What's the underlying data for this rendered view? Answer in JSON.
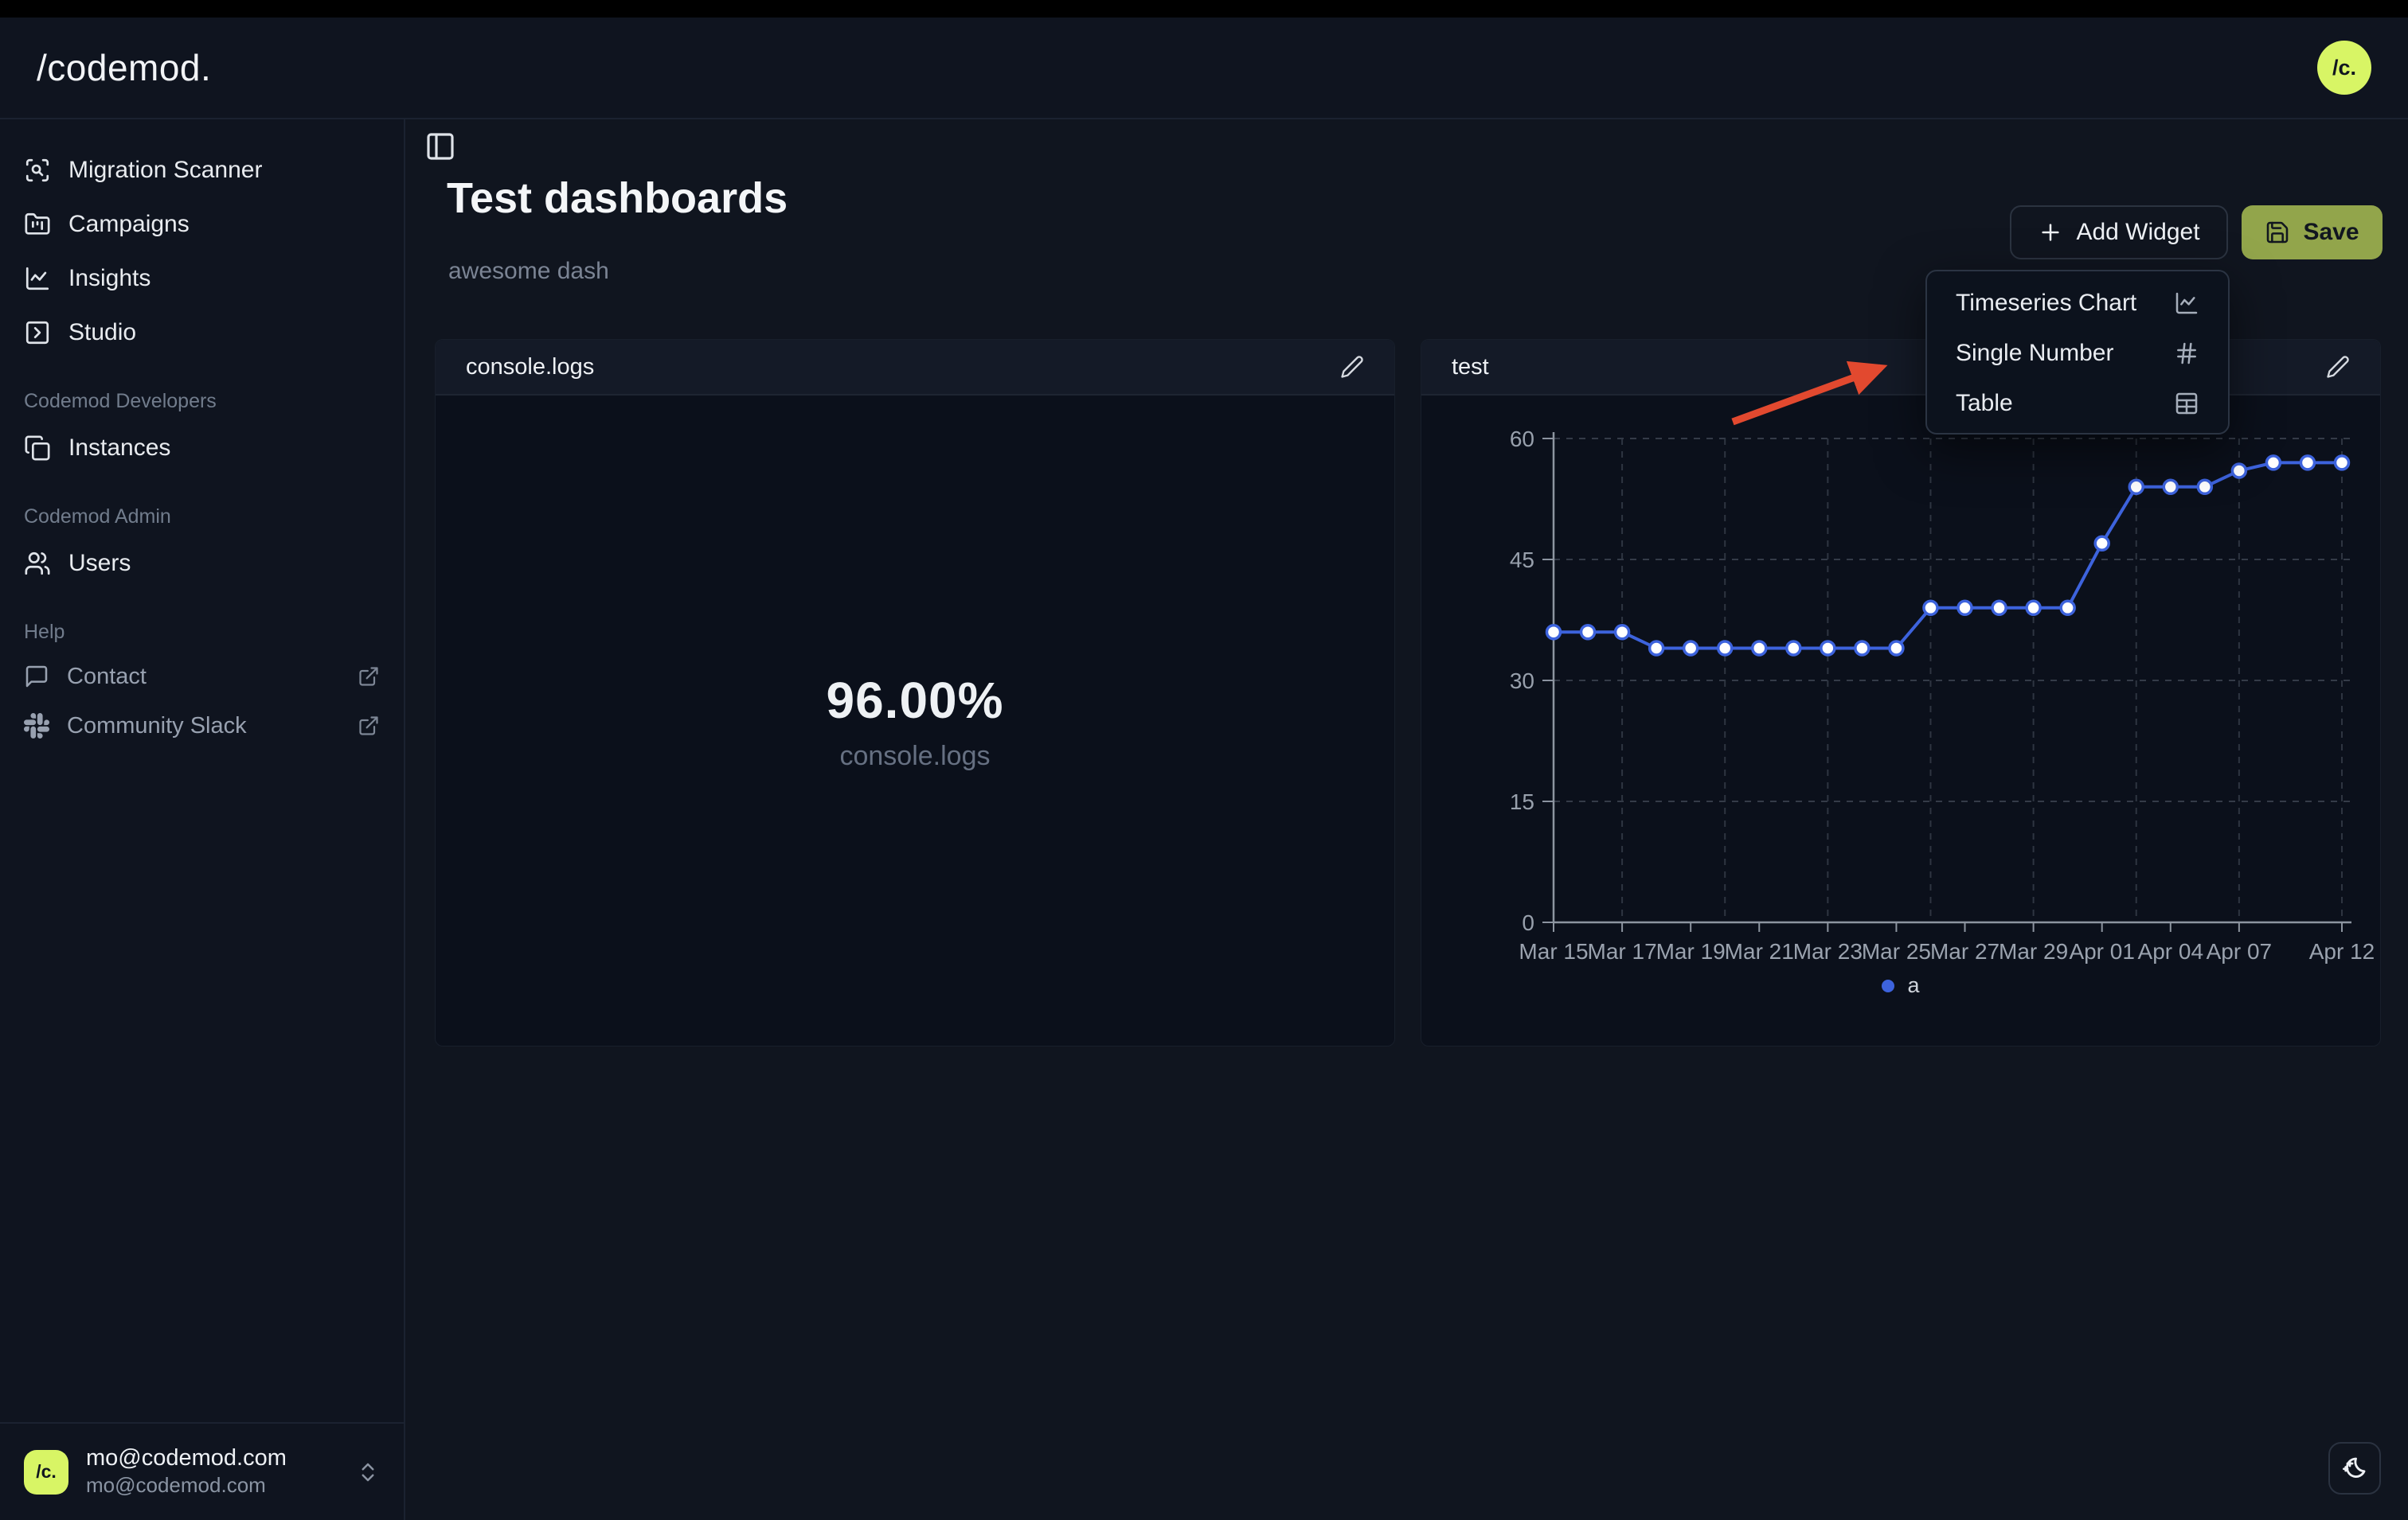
{
  "topbar": {
    "logo": "/codemod.",
    "avatar_initials": "/c."
  },
  "sidebar": {
    "nav": [
      {
        "label": "Migration Scanner"
      },
      {
        "label": "Campaigns"
      },
      {
        "label": "Insights"
      },
      {
        "label": "Studio"
      }
    ],
    "sections": [
      {
        "title": "Codemod Developers",
        "items": [
          {
            "label": "Instances"
          }
        ]
      },
      {
        "title": "Codemod Admin",
        "items": [
          {
            "label": "Users"
          }
        ]
      },
      {
        "title": "Help",
        "items": [
          {
            "label": "Contact",
            "external": true
          },
          {
            "label": "Community Slack",
            "external": true
          }
        ]
      }
    ],
    "user": {
      "name": "mo@codemod.com",
      "email": "mo@codemod.com",
      "avatar_initials": "/c."
    }
  },
  "header": {
    "title": "Test dashboards",
    "subtitle": "awesome dash",
    "add_widget_label": "Add Widget",
    "save_label": "Save"
  },
  "add_widget_menu": {
    "items": [
      {
        "label": "Timeseries Chart",
        "icon": "chart-line-icon"
      },
      {
        "label": "Single Number",
        "icon": "hash-icon"
      },
      {
        "label": "Table",
        "icon": "table-icon"
      }
    ]
  },
  "widgets": [
    {
      "title": "console.logs",
      "type": "single_number",
      "value": "96.00%",
      "caption": "console.logs"
    },
    {
      "title": "test",
      "type": "timeseries"
    }
  ],
  "chart_data": {
    "type": "line",
    "title": "test",
    "series": [
      {
        "name": "a",
        "color": "#3d63dd",
        "values": [
          36,
          36,
          36,
          34,
          34,
          34,
          34,
          34,
          34,
          34,
          34,
          39,
          39,
          39,
          39,
          39,
          47,
          54,
          54,
          54,
          56,
          57,
          57,
          57
        ]
      }
    ],
    "x_tick_labels": [
      "Mar 15",
      "Mar 17",
      "Mar 19",
      "Mar 21",
      "Mar 23",
      "Mar 25",
      "Mar 27",
      "Mar 29",
      "Apr 01",
      "Apr 04",
      "Apr 07",
      "Apr 12"
    ],
    "x_tick_indices": [
      0,
      2,
      4,
      6,
      8,
      10,
      12,
      14,
      16,
      18,
      20,
      23
    ],
    "y_ticks": [
      0,
      15,
      30,
      45,
      60
    ],
    "ylim": [
      0,
      60
    ],
    "grid": "dashed",
    "legend_position": "bottom",
    "point_style": "white-fill-blue-ring"
  },
  "annotation": {
    "type": "arrow",
    "color": "#e2492f",
    "points_at": "add-widget-menu"
  },
  "colors": {
    "background": "#10151f",
    "card": "#0b101b",
    "card_header": "#141a27",
    "accent_lime": "#d8f565",
    "save_olive": "#92a54b",
    "series_blue": "#3d63dd",
    "annotation_red": "#e2492f"
  }
}
